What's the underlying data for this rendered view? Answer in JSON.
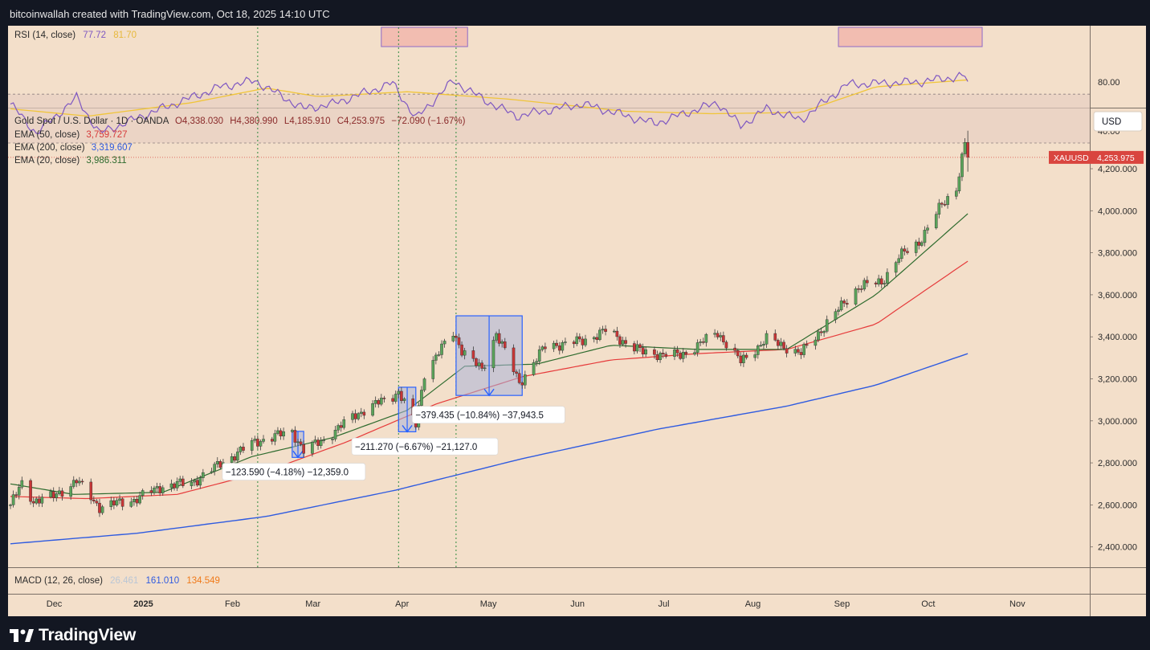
{
  "header": {
    "attribution": "bitcoinwallah created with TradingView.com, Oct 18, 2025 14:10 UTC"
  },
  "footer": {
    "brand": "TradingView"
  },
  "colors": {
    "background": "#f3dfca",
    "ema50": "#e63b3b",
    "ema200": "#2f5be0",
    "ema20": "#2e6b2e",
    "up": "#4a8a4a",
    "down": "#c73636",
    "rsi": "#7e57c2",
    "rsi_ma": "#f0c53a",
    "price_tag": "#d9453f",
    "measure": "#2962ff"
  },
  "rsi_panel": {
    "legend": {
      "name": "RSI (14, close)",
      "value1": "77.72",
      "value2": "81.70"
    },
    "ticks": [
      "80.00",
      "40.00"
    ],
    "tick_values": [
      80,
      40
    ],
    "range": [
      20,
      95
    ],
    "levels": [
      70,
      30
    ]
  },
  "price_panel": {
    "legend": {
      "symbol": "Gold Spot / U.S. Dollar · 1D · OANDA",
      "open": "O4,338.030",
      "high": "H4,380.990",
      "low": "L4,185.910",
      "close": "C4,253.975",
      "change": "−72.090 (−1.67%)"
    },
    "ema_legend": [
      {
        "label": "EMA (50, close)",
        "value": "3,759.727",
        "color_key": "ema50"
      },
      {
        "label": "EMA (200, close)",
        "value": "3,319.607",
        "color_key": "ema200"
      },
      {
        "label": "EMA (20, close)",
        "value": "3,986.311",
        "color_key": "ema20"
      }
    ],
    "currency_button": "USD",
    "price_tag": {
      "symbol": "XAUUSD",
      "value": "4,253.975"
    },
    "ticks": [
      "4,200.000",
      "4,000.000",
      "3,800.000",
      "3,600.000",
      "3,400.000",
      "3,200.000",
      "3,000.000",
      "2,800.000",
      "2,600.000",
      "2,400.000"
    ],
    "tick_values": [
      4200,
      4000,
      3800,
      3600,
      3400,
      3200,
      3000,
      2800,
      2600,
      2400
    ]
  },
  "macd_panel": {
    "legend": {
      "name": "MACD (12, 26, close)",
      "hist": "26.461",
      "macd": "161.010",
      "signal": "134.549"
    }
  },
  "time_axis": {
    "labels": [
      "Dec",
      "2025",
      "Feb",
      "Mar",
      "Apr",
      "May",
      "Jun",
      "Jul",
      "Aug",
      "Sep",
      "Oct",
      "Nov"
    ]
  },
  "measurements": [
    {
      "text": "−123.590 (−4.18%) −12,359.0"
    },
    {
      "text": "−211.270 (−6.67%) −21,127.0"
    },
    {
      "text": "−379.435 (−10.84%) −37,943.5"
    }
  ],
  "chart_data": {
    "type": "candlestick",
    "symbol": "XAUUSD",
    "x_range": [
      "2024-11-18",
      "2025-11-14"
    ],
    "y_range": [
      2300,
      4450
    ],
    "price_series_anchors": [
      [
        "2024-11-18",
        2600
      ],
      [
        "2024-11-22",
        2700
      ],
      [
        "2024-11-26",
        2620
      ],
      [
        "2024-12-03",
        2640
      ],
      [
        "2024-12-11",
        2715
      ],
      [
        "2024-12-19",
        2590
      ],
      [
        "2024-12-31",
        2625
      ],
      [
        "2025-01-10",
        2690
      ],
      [
        "2025-01-20",
        2705
      ],
      [
        "2025-01-30",
        2795
      ],
      [
        "2025-02-11",
        2900
      ],
      [
        "2025-02-24",
        2950
      ],
      [
        "2025-02-28",
        2858
      ],
      [
        "2025-03-07",
        2910
      ],
      [
        "2025-03-18",
        3030
      ],
      [
        "2025-03-31",
        3120
      ],
      [
        "2025-04-02",
        3140
      ],
      [
        "2025-04-08",
        2980
      ],
      [
        "2025-04-11",
        3230
      ],
      [
        "2025-04-21",
        3420
      ],
      [
        "2025-04-24",
        3340
      ],
      [
        "2025-05-01",
        3240
      ],
      [
        "2025-05-06",
        3420
      ],
      [
        "2025-05-14",
        3180
      ],
      [
        "2025-05-23",
        3355
      ],
      [
        "2025-06-05",
        3380
      ],
      [
        "2025-06-13",
        3430
      ],
      [
        "2025-06-26",
        3325
      ],
      [
        "2025-07-09",
        3310
      ],
      [
        "2025-07-22",
        3420
      ],
      [
        "2025-07-30",
        3280
      ],
      [
        "2025-08-08",
        3390
      ],
      [
        "2025-08-20",
        3320
      ],
      [
        "2025-09-02",
        3530
      ],
      [
        "2025-09-09",
        3640
      ],
      [
        "2025-09-17",
        3660
      ],
      [
        "2025-09-23",
        3780
      ],
      [
        "2025-09-30",
        3850
      ],
      [
        "2025-10-08",
        4030
      ],
      [
        "2025-10-13",
        4110
      ],
      [
        "2025-10-16",
        4320
      ],
      [
        "2025-10-17",
        4254
      ]
    ],
    "ema50_anchors": [
      [
        "2024-11-18",
        2640
      ],
      [
        "2024-12-15",
        2630
      ],
      [
        "2025-01-15",
        2650
      ],
      [
        "2025-02-15",
        2760
      ],
      [
        "2025-03-15",
        2900
      ],
      [
        "2025-04-15",
        3080
      ],
      [
        "2025-05-15",
        3210
      ],
      [
        "2025-06-15",
        3290
      ],
      [
        "2025-07-15",
        3320
      ],
      [
        "2025-08-15",
        3340
      ],
      [
        "2025-09-15",
        3460
      ],
      [
        "2025-10-17",
        3760
      ]
    ],
    "ema200_anchors": [
      [
        "2024-11-18",
        2415
      ],
      [
        "2025-01-01",
        2465
      ],
      [
        "2025-02-15",
        2545
      ],
      [
        "2025-04-01",
        2670
      ],
      [
        "2025-05-15",
        2820
      ],
      [
        "2025-07-01",
        2960
      ],
      [
        "2025-08-15",
        3070
      ],
      [
        "2025-09-15",
        3170
      ],
      [
        "2025-10-17",
        3320
      ]
    ],
    "ema20_anchors": [
      [
        "2024-11-18",
        2700
      ],
      [
        "2024-12-10",
        2650
      ],
      [
        "2025-01-10",
        2660
      ],
      [
        "2025-02-10",
        2830
      ],
      [
        "2025-03-10",
        2920
      ],
      [
        "2025-04-05",
        3050
      ],
      [
        "2025-04-25",
        3260
      ],
      [
        "2025-05-20",
        3270
      ],
      [
        "2025-06-15",
        3360
      ],
      [
        "2025-07-15",
        3340
      ],
      [
        "2025-08-15",
        3340
      ],
      [
        "2025-09-15",
        3600
      ],
      [
        "2025-10-17",
        3986
      ]
    ],
    "rsi_anchors": [
      [
        "2024-11-18",
        62
      ],
      [
        "2024-11-27",
        38
      ],
      [
        "2024-12-11",
        67
      ],
      [
        "2024-12-19",
        38
      ],
      [
        "2025-01-06",
        55
      ],
      [
        "2025-01-30",
        76
      ],
      [
        "2025-02-11",
        81
      ],
      [
        "2025-02-28",
        58
      ],
      [
        "2025-03-10",
        62
      ],
      [
        "2025-03-31",
        79
      ],
      [
        "2025-04-08",
        50
      ],
      [
        "2025-04-21",
        81
      ],
      [
        "2025-05-02",
        65
      ],
      [
        "2025-05-13",
        52
      ],
      [
        "2025-06-05",
        62
      ],
      [
        "2025-06-30",
        46
      ],
      [
        "2025-07-22",
        63
      ],
      [
        "2025-07-30",
        44
      ],
      [
        "2025-08-08",
        58
      ],
      [
        "2025-08-20",
        49
      ],
      [
        "2025-09-05",
        78
      ],
      [
        "2025-09-30",
        80
      ],
      [
        "2025-10-16",
        85
      ],
      [
        "2025-10-17",
        77.72
      ]
    ],
    "rsi_ma_anchors": [
      [
        "2024-11-18",
        58
      ],
      [
        "2024-12-15",
        52
      ],
      [
        "2025-01-20",
        63
      ],
      [
        "2025-02-15",
        75
      ],
      [
        "2025-03-05",
        68
      ],
      [
        "2025-04-05",
        72
      ],
      [
        "2025-05-10",
        66
      ],
      [
        "2025-06-20",
        56
      ],
      [
        "2025-07-20",
        54
      ],
      [
        "2025-08-20",
        55
      ],
      [
        "2025-09-15",
        76
      ],
      [
        "2025-10-17",
        81.7
      ]
    ],
    "event_lines": [
      "2025-02-12",
      "2025-04-02",
      "2025-04-22"
    ],
    "measure_tools": [
      {
        "from": "2025-02-24",
        "to": "2025-02-28",
        "high": 2950,
        "low": 2826,
        "label_index": 0
      },
      {
        "from": "2025-04-02",
        "to": "2025-04-08",
        "high": 3160,
        "low": 2948,
        "label_index": 1
      },
      {
        "from": "2025-04-22",
        "to": "2025-05-15",
        "high": 3500,
        "low": 3121,
        "label_index": 2
      }
    ],
    "rsi_highlights": [
      {
        "from": "2025-03-27",
        "to": "2025-04-26"
      },
      {
        "from": "2025-09-02",
        "to": "2025-10-22"
      }
    ]
  }
}
